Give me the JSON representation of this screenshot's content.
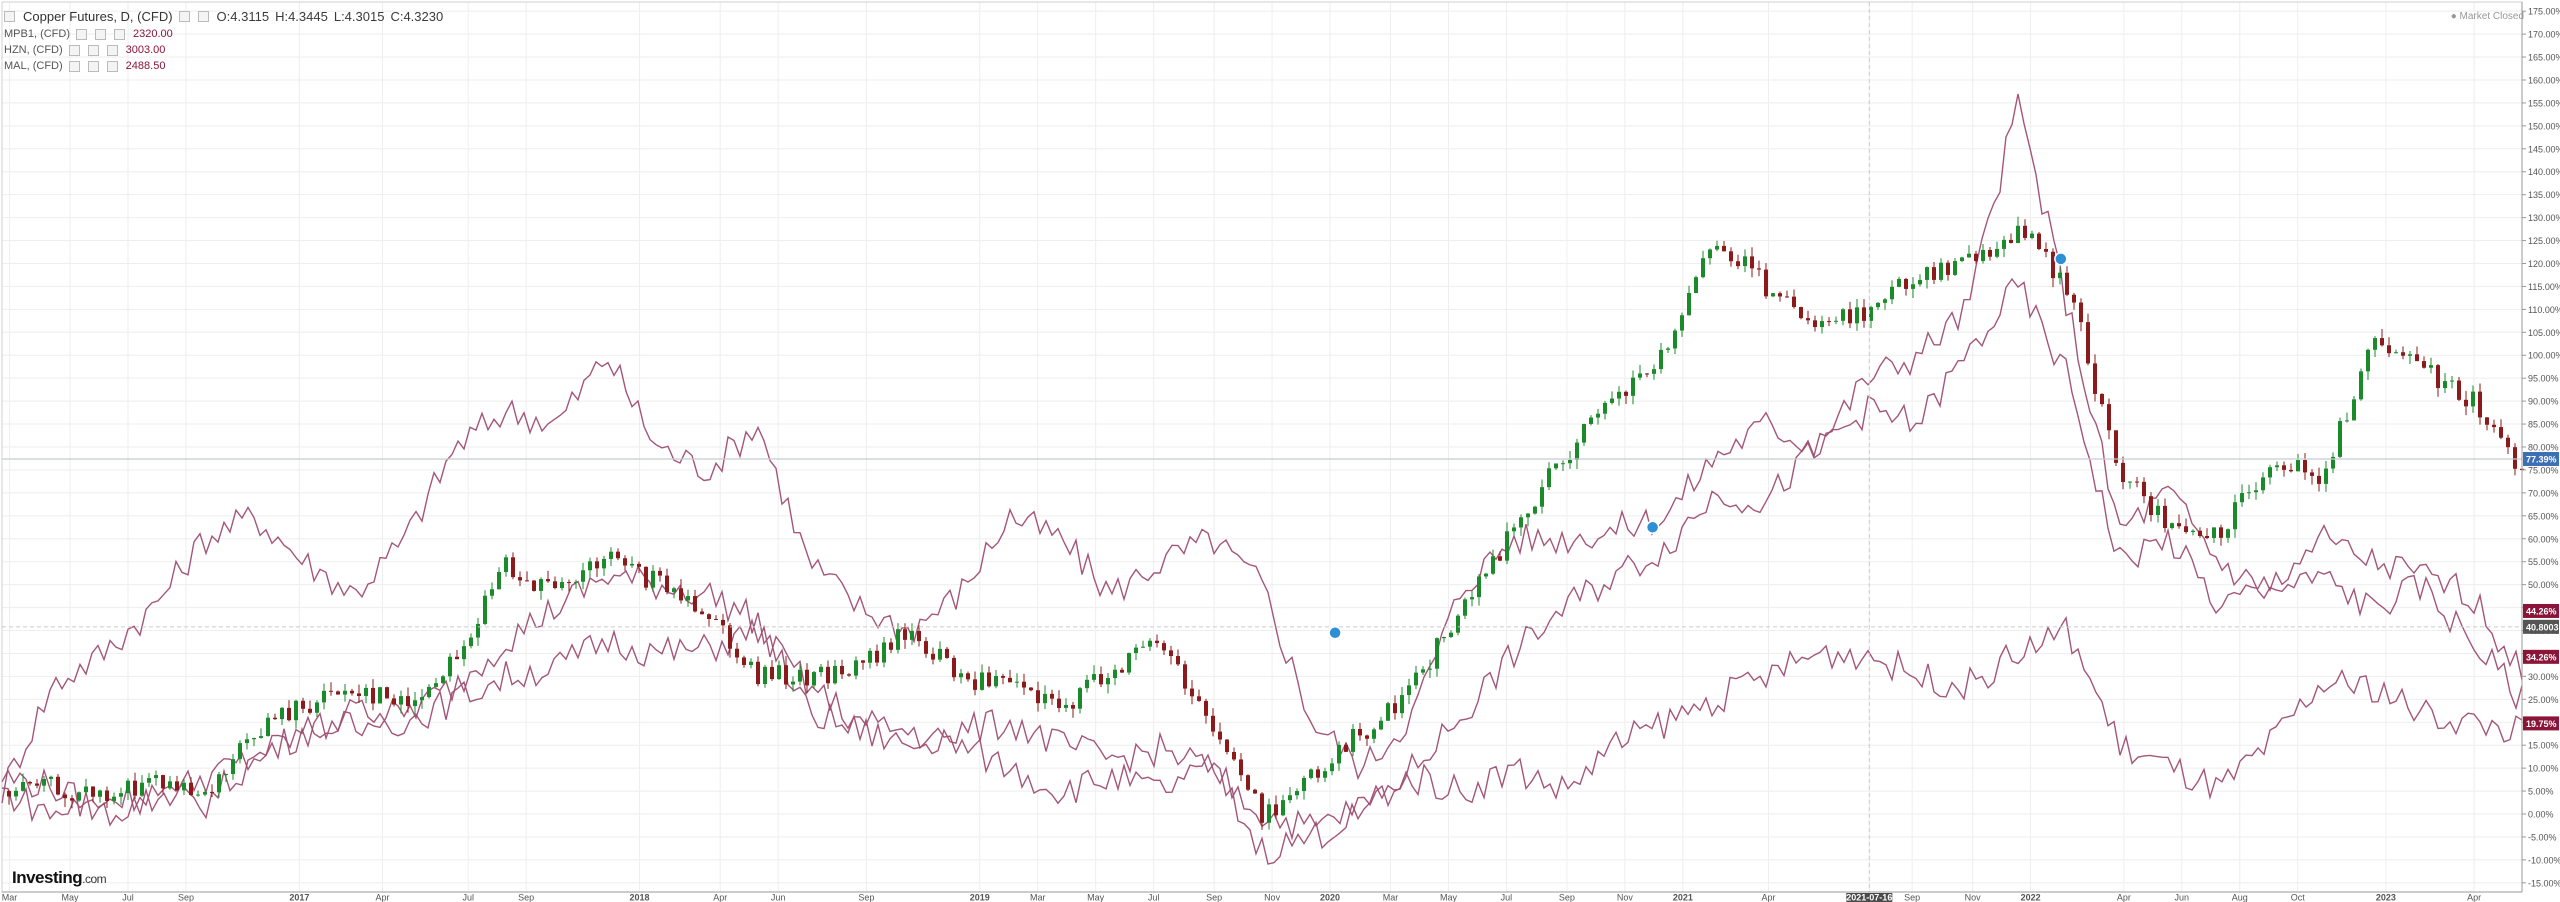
{
  "legend": {
    "main": {
      "name": "Copper Futures, D, (CFD)",
      "open": "O:4.3115",
      "high": "H:4.3445",
      "low": "L:4.3015",
      "close": "C:4.3230"
    },
    "overlays": [
      {
        "name": "MPB1, (CFD)",
        "value": "2320.00"
      },
      {
        "name": "HZN, (CFD)",
        "value": "3003.00"
      },
      {
        "name": "MAL, (CFD)",
        "value": "2488.50"
      }
    ]
  },
  "market_status": "Market Closed",
  "brand": {
    "name": "Investing",
    "suffix": ".com"
  },
  "colors": {
    "candle_up": "#1b8a2b",
    "candle_down": "#8b1a1a",
    "overlay_line": "#9e4d72",
    "crosshair": "#b5c0cc",
    "badge_blue": "#3d6fb5",
    "badge_dark": "#8a1538",
    "badge_gray": "#555555",
    "event_marker": "#2f8fd6"
  },
  "chart_data": {
    "type": "line",
    "title": "Copper Futures, D, (CFD)",
    "ylabel": "",
    "ylim": [
      -17,
      177
    ],
    "y_ticks": [
      "-15.00%",
      "-10.00%",
      "-5.00%",
      "0.00%",
      "5.00%",
      "10.00%",
      "15.00%",
      "20.00%",
      "25.00%",
      "30.00%",
      "35.00%",
      "40.00%",
      "45.00%",
      "50.00%",
      "55.00%",
      "60.00%",
      "65.00%",
      "70.00%",
      "75.00%",
      "80.00%",
      "85.00%",
      "90.00%",
      "95.00%",
      "100.00%",
      "105.00%",
      "110.00%",
      "115.00%",
      "120.00%",
      "125.00%",
      "130.00%",
      "135.00%",
      "140.00%",
      "145.00%",
      "150.00%",
      "155.00%",
      "160.00%",
      "165.00%",
      "170.00%",
      "175.00%"
    ],
    "x_ticks": [
      "Mar",
      "May",
      "Jul",
      "Sep",
      "2017",
      "Apr",
      "Jul",
      "Sep",
      "2018",
      "Apr",
      "Jun",
      "Sep",
      "2019",
      "Mar",
      "May",
      "Jul",
      "Sep",
      "Nov",
      "2020",
      "Mar",
      "May",
      "Jul",
      "Sep",
      "Nov",
      "2021",
      "Apr",
      "2021-07-16",
      "Sep",
      "Nov",
      "2022",
      "Apr",
      "Jun",
      "Aug",
      "Oct",
      "2023",
      "Apr"
    ],
    "x_range": [
      0,
      100
    ],
    "x_tick_positions": [
      0.3,
      2.7,
      5,
      7.3,
      11.8,
      15.1,
      18.5,
      20.8,
      25.3,
      28.5,
      30.8,
      34.3,
      38.8,
      41.1,
      43.4,
      45.7,
      48.1,
      50.4,
      52.7,
      55.1,
      57.4,
      59.7,
      62.1,
      64.4,
      66.7,
      70.1,
      74.1,
      75.8,
      78.2,
      80.5,
      84.2,
      86.5,
      88.8,
      91.1,
      94.6,
      98.1
    ],
    "crosshair": {
      "x": 74.1,
      "y": 40.8
    },
    "horizontal_line_y": 77.39,
    "series": [
      {
        "name": "Copper Futures, D, (CFD)",
        "style": "candlestick",
        "x": [
          0,
          2,
          4,
          6,
          8,
          10,
          12,
          14,
          16,
          18,
          20,
          22,
          24,
          26,
          28,
          30,
          32,
          34,
          36,
          38,
          40,
          42,
          44,
          46,
          48,
          50,
          52,
          54,
          56,
          58,
          60,
          62,
          64,
          66,
          68,
          70,
          72,
          74,
          76,
          78,
          80,
          82,
          84,
          86,
          88,
          90,
          92,
          94,
          96,
          98,
          100
        ],
        "values": [
          5,
          6,
          3,
          8,
          2,
          18,
          24,
          28,
          24,
          33,
          55,
          48,
          56,
          50,
          45,
          30,
          30,
          32,
          40,
          30,
          28,
          23,
          32,
          38,
          20,
          0,
          8,
          18,
          28,
          45,
          62,
          78,
          90,
          100,
          125,
          115,
          105,
          110,
          118,
          120,
          128,
          115,
          75,
          62,
          60,
          78,
          72,
          102,
          98,
          90,
          75
        ]
      },
      {
        "name": "MPB1, (CFD)",
        "style": "line",
        "x": [
          0,
          2,
          4,
          6,
          8,
          10,
          12,
          14,
          16,
          18,
          20,
          22,
          24,
          26,
          28,
          30,
          32,
          34,
          36,
          38,
          40,
          42,
          44,
          46,
          48,
          50,
          52,
          54,
          56,
          58,
          60,
          62,
          64,
          66,
          68,
          70,
          72,
          74,
          76,
          78,
          80,
          82,
          84,
          86,
          88,
          90,
          92,
          94,
          96,
          98,
          100
        ],
        "values": [
          5,
          28,
          35,
          45,
          60,
          65,
          55,
          48,
          60,
          80,
          88,
          85,
          100,
          80,
          75,
          85,
          55,
          45,
          40,
          48,
          65,
          60,
          48,
          55,
          60,
          50,
          20,
          10,
          22,
          50,
          60,
          60,
          62,
          65,
          78,
          85,
          80,
          95,
          100,
          110,
          155,
          110,
          62,
          70,
          55,
          48,
          52,
          45,
          50,
          38,
          25
        ]
      },
      {
        "name": "HZN, (CFD)",
        "style": "line",
        "x": [
          0,
          2,
          4,
          6,
          8,
          10,
          12,
          14,
          16,
          18,
          20,
          22,
          24,
          26,
          28,
          30,
          32,
          34,
          36,
          38,
          40,
          42,
          44,
          46,
          48,
          50,
          52,
          54,
          56,
          58,
          60,
          62,
          64,
          66,
          68,
          70,
          72,
          74,
          76,
          78,
          80,
          82,
          84,
          86,
          88,
          90,
          92,
          94,
          96,
          98,
          100
        ],
        "values": [
          8,
          6,
          0,
          3,
          8,
          12,
          18,
          20,
          22,
          28,
          38,
          45,
          52,
          50,
          48,
          42,
          22,
          18,
          15,
          18,
          20,
          15,
          12,
          14,
          10,
          -8,
          -5,
          0,
          10,
          22,
          35,
          45,
          52,
          58,
          70,
          68,
          80,
          88,
          85,
          100,
          115,
          95,
          55,
          60,
          45,
          50,
          60,
          55,
          52,
          48,
          30
        ]
      },
      {
        "name": "MAL, (CFD)",
        "style": "line",
        "x": [
          0,
          2,
          4,
          6,
          8,
          10,
          12,
          14,
          16,
          18,
          20,
          22,
          24,
          26,
          28,
          30,
          32,
          34,
          36,
          38,
          40,
          42,
          44,
          46,
          48,
          50,
          52,
          54,
          56,
          58,
          60,
          62,
          64,
          66,
          68,
          70,
          72,
          74,
          76,
          78,
          80,
          82,
          84,
          86,
          88,
          90,
          92,
          94,
          96,
          98,
          100
        ],
        "values": [
          5,
          0,
          3,
          5,
          2,
          12,
          18,
          22,
          20,
          25,
          30,
          32,
          38,
          35,
          36,
          40,
          28,
          20,
          18,
          15,
          10,
          5,
          8,
          5,
          10,
          0,
          -3,
          2,
          8,
          5,
          10,
          5,
          15,
          20,
          25,
          30,
          35,
          35,
          30,
          28,
          35,
          40,
          15,
          10,
          5,
          15,
          28,
          28,
          22,
          20,
          18
        ]
      }
    ],
    "price_labels": [
      {
        "text": "77.39%",
        "y": 77.39,
        "color": "blue"
      },
      {
        "text": "44.26%",
        "y": 44.26,
        "color": "dark"
      },
      {
        "text": "40.8003",
        "y": 40.8,
        "color": "gray"
      },
      {
        "text": "34.26%",
        "y": 34.26,
        "color": "dark"
      },
      {
        "text": "19.75%",
        "y": 19.75,
        "color": "dark"
      }
    ],
    "event_markers": [
      {
        "x": 52.9,
        "y": 39.5
      },
      {
        "x": 65.5,
        "y": 62.5
      },
      {
        "x": 81.7,
        "y": 121
      }
    ],
    "grid": true
  }
}
